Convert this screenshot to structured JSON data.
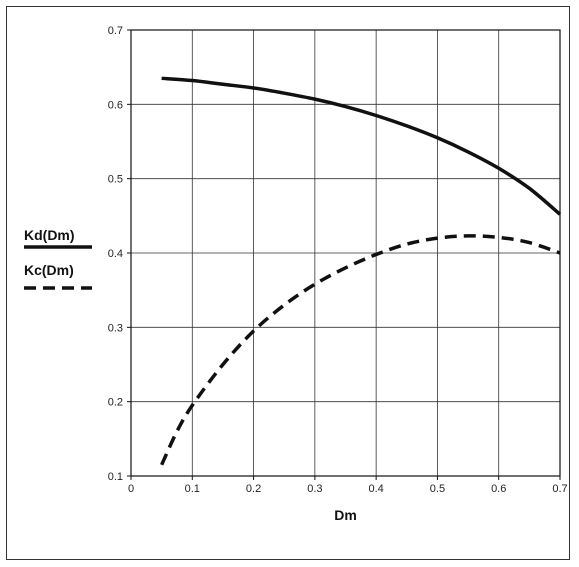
{
  "chart_data": {
    "type": "line",
    "xlabel": "Dm",
    "ylabel": "",
    "xlim": [
      0,
      0.7
    ],
    "ylim": [
      0.1,
      0.7
    ],
    "grid": true,
    "legend_position": "left",
    "x_ticks": [
      "0",
      "0.1",
      "0.2",
      "0.3",
      "0.4",
      "0.5",
      "0.6",
      "0.7"
    ],
    "y_ticks": [
      "0.1",
      "0.2",
      "0.3",
      "0.4",
      "0.5",
      "0.6",
      "0.7"
    ],
    "series": [
      {
        "name": "Kd(Dm)",
        "style": "solid",
        "x": [
          0.05,
          0.1,
          0.15,
          0.2,
          0.25,
          0.3,
          0.35,
          0.4,
          0.45,
          0.5,
          0.55,
          0.6,
          0.65,
          0.7
        ],
        "values": [
          0.635,
          0.632,
          0.627,
          0.622,
          0.615,
          0.607,
          0.597,
          0.585,
          0.571,
          0.555,
          0.536,
          0.514,
          0.487,
          0.452
        ]
      },
      {
        "name": "Kc(Dm)",
        "style": "dashed",
        "x": [
          0.05,
          0.075,
          0.1,
          0.15,
          0.2,
          0.25,
          0.3,
          0.35,
          0.4,
          0.45,
          0.5,
          0.55,
          0.6,
          0.65,
          0.7
        ],
        "values": [
          0.115,
          0.16,
          0.195,
          0.25,
          0.295,
          0.33,
          0.358,
          0.38,
          0.398,
          0.412,
          0.42,
          0.423,
          0.421,
          0.414,
          0.4
        ]
      }
    ]
  },
  "colors": {
    "line": "#111111",
    "grid": "#333333",
    "background": "#ffffff"
  }
}
